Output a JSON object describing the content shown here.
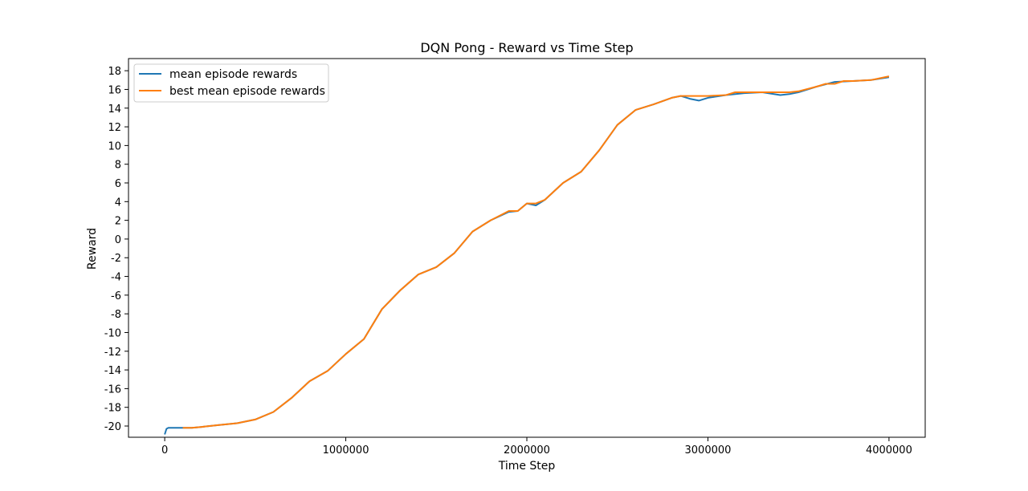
{
  "chart_data": {
    "type": "line",
    "title": "DQN Pong - Reward vs Time Step",
    "xlabel": "Time Step",
    "ylabel": "Reward",
    "xlim": [
      -200000,
      4200000
    ],
    "ylim": [
      -21.2,
      19.3
    ],
    "x_ticks": [
      0,
      1000000,
      2000000,
      3000000,
      4000000
    ],
    "x_tick_labels": [
      "0",
      "1000000",
      "2000000",
      "3000000",
      "4000000"
    ],
    "y_ticks": [
      -20,
      -18,
      -16,
      -14,
      -12,
      -10,
      -8,
      -6,
      -4,
      -2,
      0,
      2,
      4,
      6,
      8,
      10,
      12,
      14,
      16,
      18
    ],
    "y_tick_labels": [
      "-20",
      "-18",
      "-16",
      "-14",
      "-12",
      "-10",
      "-8",
      "-6",
      "-4",
      "-2",
      "0",
      "2",
      "4",
      "6",
      "8",
      "10",
      "12",
      "14",
      "16",
      "18"
    ],
    "grid": false,
    "legend_position": "top-left",
    "series": [
      {
        "name": "mean episode rewards",
        "color": "#1f77b4",
        "x": [
          0,
          5000,
          10000,
          20000,
          50000,
          100000,
          150000,
          200000,
          300000,
          400000,
          500000,
          600000,
          700000,
          800000,
          900000,
          1000000,
          1100000,
          1200000,
          1300000,
          1400000,
          1500000,
          1600000,
          1700000,
          1800000,
          1900000,
          1950000,
          2000000,
          2050000,
          2100000,
          2200000,
          2300000,
          2400000,
          2500000,
          2600000,
          2700000,
          2800000,
          2850000,
          2900000,
          2950000,
          3000000,
          3100000,
          3200000,
          3300000,
          3400000,
          3450000,
          3500000,
          3600000,
          3700000,
          3800000,
          3900000,
          4000000
        ],
        "values": [
          -20.9,
          -20.6,
          -20.3,
          -20.2,
          -20.2,
          -20.2,
          -20.2,
          -20.1,
          -19.9,
          -19.7,
          -19.3,
          -18.5,
          -17.0,
          -15.2,
          -14.1,
          -12.3,
          -10.7,
          -7.5,
          -5.5,
          -3.8,
          -3.0,
          -1.5,
          0.8,
          2.0,
          2.9,
          3.0,
          3.8,
          3.6,
          4.2,
          6.0,
          7.2,
          9.5,
          12.2,
          13.8,
          14.4,
          15.1,
          15.3,
          15.0,
          14.8,
          15.1,
          15.4,
          15.6,
          15.7,
          15.4,
          15.5,
          15.7,
          16.3,
          16.8,
          16.9,
          17.0,
          17.3
        ]
      },
      {
        "name": "best mean episode rewards",
        "color": "#ff7f0e",
        "x": [
          100000,
          150000,
          200000,
          300000,
          400000,
          500000,
          600000,
          700000,
          800000,
          900000,
          1000000,
          1100000,
          1200000,
          1300000,
          1400000,
          1500000,
          1600000,
          1700000,
          1800000,
          1900000,
          1950000,
          2000000,
          2050000,
          2100000,
          2200000,
          2300000,
          2400000,
          2500000,
          2600000,
          2700000,
          2800000,
          2850000,
          3000000,
          3100000,
          3150000,
          3300000,
          3450000,
          3500000,
          3600000,
          3650000,
          3700000,
          3750000,
          3800000,
          3900000,
          3950000,
          4000000
        ],
        "values": [
          -20.2,
          -20.2,
          -20.1,
          -19.9,
          -19.7,
          -19.3,
          -18.5,
          -17.0,
          -15.2,
          -14.1,
          -12.3,
          -10.7,
          -7.5,
          -5.5,
          -3.8,
          -3.0,
          -1.5,
          0.8,
          2.0,
          3.0,
          3.0,
          3.8,
          3.8,
          4.2,
          6.0,
          7.2,
          9.5,
          12.2,
          13.8,
          14.4,
          15.1,
          15.3,
          15.3,
          15.4,
          15.7,
          15.7,
          15.7,
          15.8,
          16.3,
          16.6,
          16.6,
          16.9,
          16.9,
          17.0,
          17.2,
          17.4
        ]
      }
    ]
  }
}
